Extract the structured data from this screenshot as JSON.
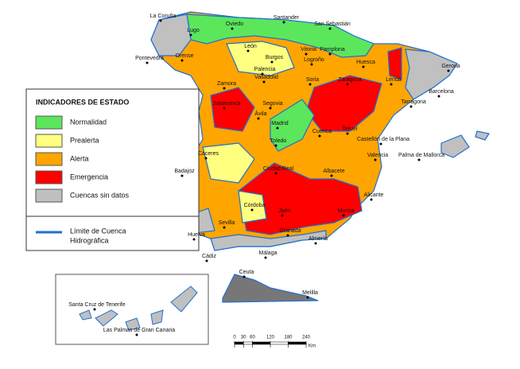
{
  "legend": {
    "title": "INDICADORES DE ESTADO",
    "items": [
      {
        "label": "Normalidad",
        "color": "#5ce65c"
      },
      {
        "label": "Prealerta",
        "color": "#ffff80"
      },
      {
        "label": "Alerta",
        "color": "#ffa500"
      },
      {
        "label": "Emergencia",
        "color": "#ff0000"
      },
      {
        "label": "Cuencas sin datos",
        "color": "#c0c0c0"
      }
    ],
    "boundary": {
      "lines": [
        "Límite de Cuenca",
        "Hidrográfica"
      ],
      "color": "#1f6fd1"
    }
  },
  "cities": [
    "La Coruña",
    "Santander",
    "San Sebastián",
    "Oviedo",
    "Lugo",
    "Pontevedra",
    "Orense",
    "León",
    "Vitoria",
    "Pamplona",
    "Burgos",
    "Logroño",
    "Huesca",
    "Gerona",
    "Palencia",
    "Valladolid",
    "Soria",
    "Zaragoza",
    "Lérida",
    "Zamora",
    "Barcelona",
    "Tarragona",
    "Salamanca",
    "Segovia",
    "Ávila",
    "Madrid",
    "Cuenca",
    "Teruel",
    "Castellón de la Plana",
    "Toledo",
    "Cáceres",
    "Valencia",
    "Palma de Mallorca",
    "Badajoz",
    "Ciudad Real",
    "Albacete",
    "Alicante",
    "Córdoba",
    "Jaén",
    "Murcia",
    "Sevilla",
    "Granada",
    "Huelva",
    "Almería",
    "Cádiz",
    "Málaga",
    "Ceuta",
    "Melilla",
    "Santa Cruz de Tenerife",
    "Las Palmas de Gran Canaria"
  ],
  "scale": {
    "ticks": [
      0,
      30,
      60,
      120,
      180,
      240
    ],
    "unit": "Km"
  }
}
